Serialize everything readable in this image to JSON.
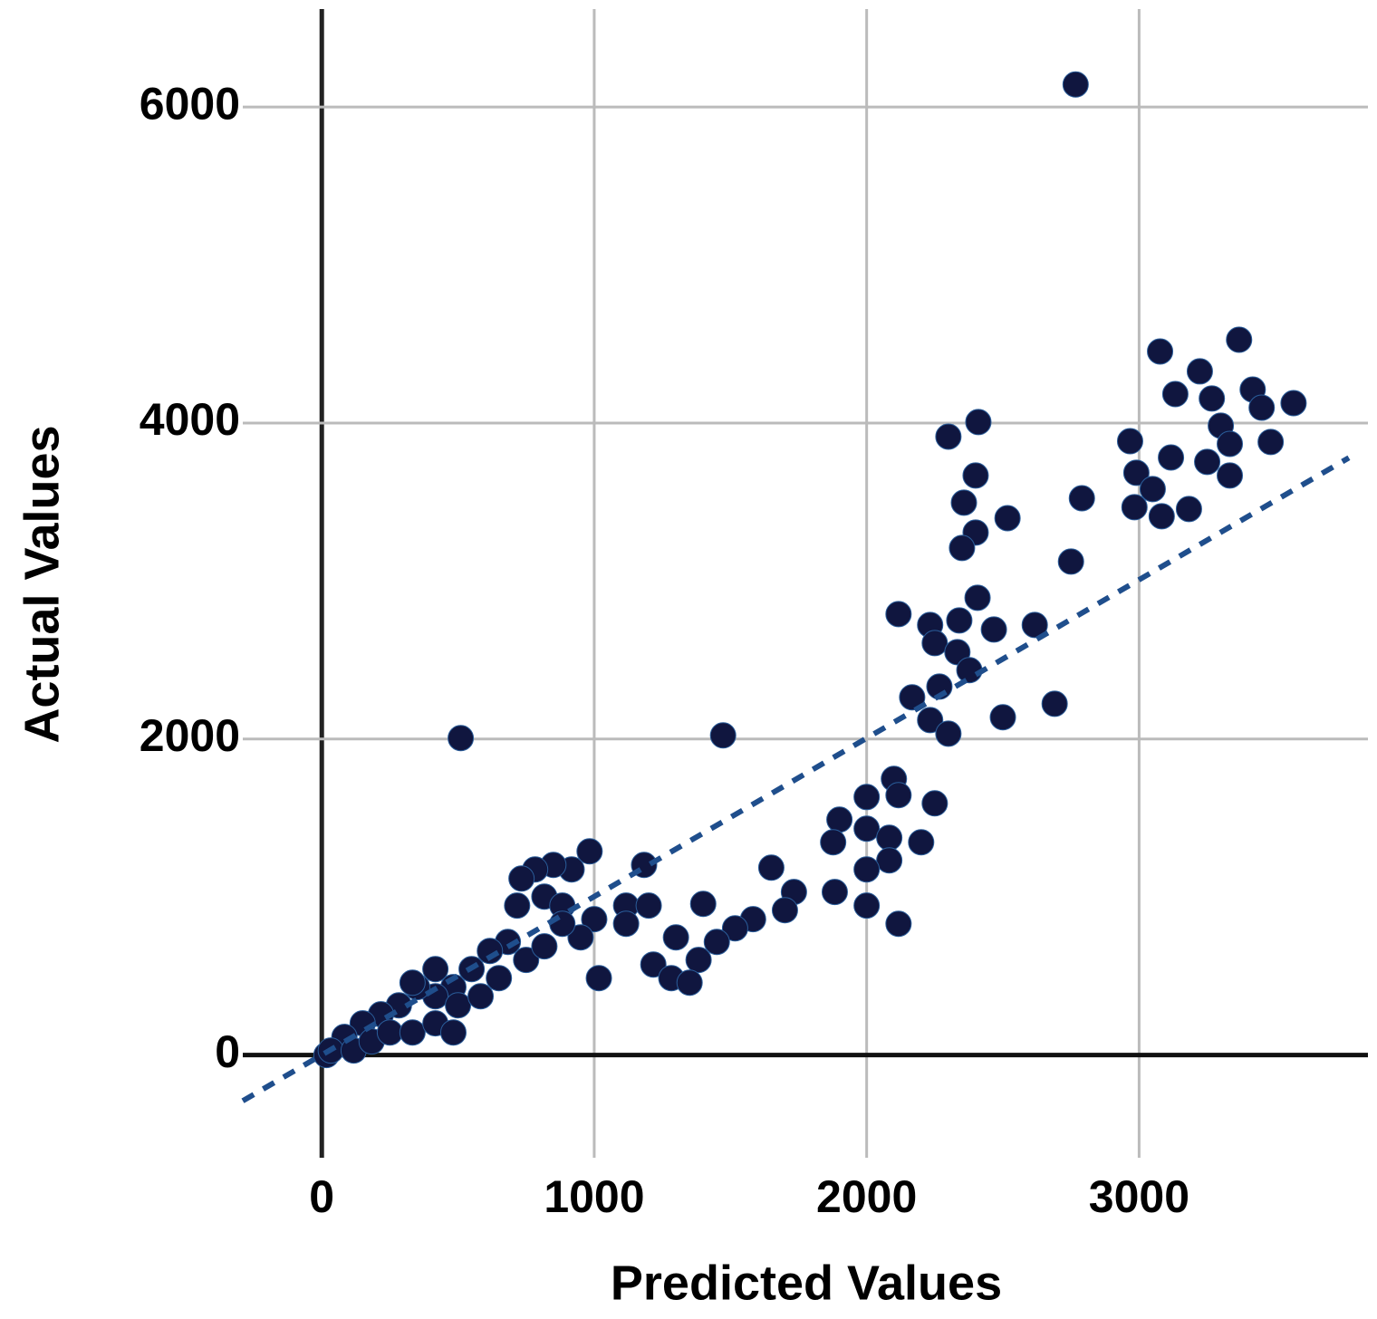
{
  "chart_data": {
    "type": "scatter",
    "x_label": "Predicted Values",
    "y_label": "Actual Values",
    "xlim": [
      -290,
      3840
    ],
    "ylim": [
      -650,
      6620
    ],
    "xticks": [
      0,
      1000,
      2000,
      3000
    ],
    "yticks": [
      0,
      2000,
      4000,
      6000
    ],
    "grid": true,
    "color": "#10163f",
    "reference_line": {
      "color": "#1f4e8c",
      "x": [
        -290,
        3770
      ],
      "y": [
        -290,
        3780
      ]
    },
    "x": [
      2767,
      510,
      1473,
      3367,
      3077,
      3223,
      3133,
      3417,
      3567,
      3450,
      3267,
      3300,
      3333,
      3483,
      2967,
      3117,
      3250,
      3333,
      2990,
      3050,
      2983,
      3083,
      3183,
      2410,
      2300,
      2400,
      2357,
      2400,
      2350,
      2517,
      2790,
      2750,
      2407,
      2340,
      2117,
      2233,
      2250,
      2333,
      2467,
      2617,
      2377,
      2267,
      2167,
      2233,
      2300,
      2500,
      2690,
      2100,
      2000,
      2117,
      2250,
      1900,
      2000,
      1877,
      2083,
      2200,
      2083,
      2000,
      1883,
      2000,
      2117,
      1650,
      1733,
      1700,
      1583,
      1517,
      1400,
      1450,
      1383,
      1300,
      1217,
      1283,
      1350,
      1183,
      1117,
      1200,
      1117,
      1017,
      1000,
      950,
      983,
      917,
      850,
      783,
      733,
      717,
      817,
      883,
      683,
      617,
      550,
      483,
      417,
      350,
      283,
      217,
      150,
      83,
      17,
      33,
      117,
      183,
      250,
      333,
      417,
      483,
      500,
      583,
      650,
      750,
      817,
      883,
      417,
      333
    ],
    "y": [
      6143,
      2006,
      2023,
      4527,
      4453,
      4327,
      4183,
      4212,
      4126,
      4097,
      4155,
      3983,
      3868,
      3880,
      3885,
      3782,
      3754,
      3668,
      3685,
      3582,
      3467,
      3410,
      3456,
      4006,
      3914,
      3668,
      3496,
      3307,
      3209,
      3398,
      3524,
      3123,
      2894,
      2751,
      2791,
      2722,
      2607,
      2550,
      2693,
      2722,
      2436,
      2332,
      2264,
      2120,
      2034,
      2138,
      2223,
      1748,
      1633,
      1645,
      1593,
      1490,
      1433,
      1347,
      1375,
      1347,
      1232,
      1175,
      1032,
      946,
      831,
      1186,
      1032,
      917,
      860,
      802,
      957,
      716,
      602,
      745,
      573,
      487,
      458,
      1203,
      946,
      946,
      831,
      487,
      860,
      745,
      1289,
      1175,
      1203,
      1175,
      1117,
      946,
      1003,
      946,
      716,
      659,
      544,
      430,
      372,
      430,
      315,
      258,
      201,
      115,
      0,
      29,
      29,
      86,
      143,
      143,
      201,
      143,
      315,
      372,
      487,
      602,
      688,
      831,
      544,
      458
    ]
  }
}
